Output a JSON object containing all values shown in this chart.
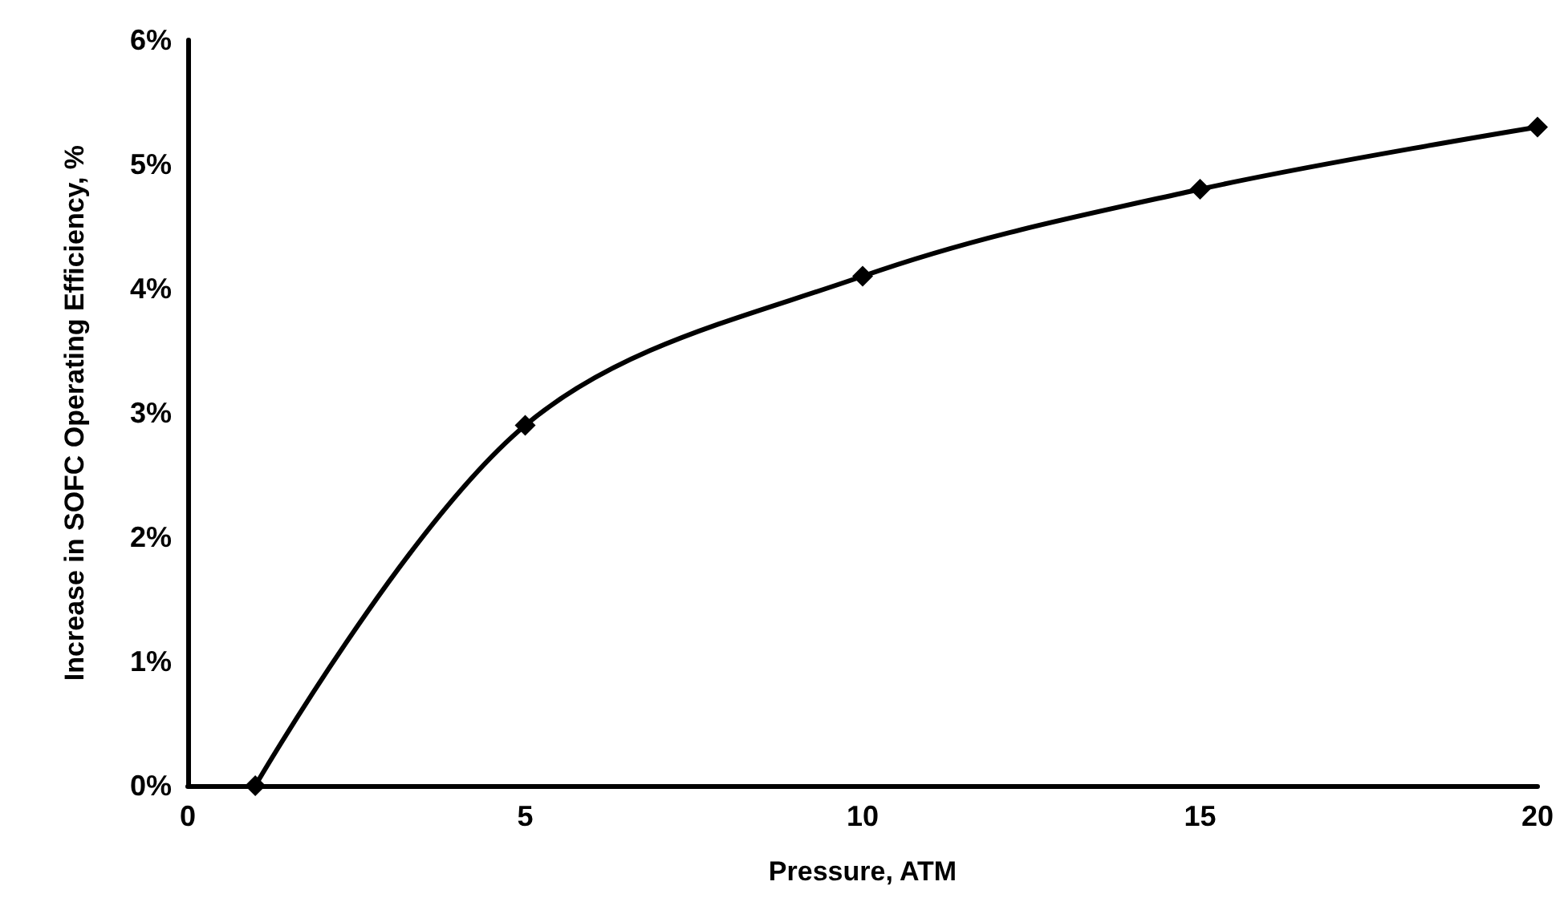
{
  "chart_data": {
    "type": "line",
    "xlabel": "Pressure, ATM",
    "ylabel": "Increase in SOFC Operating Efficiency, %",
    "x": [
      1,
      5,
      10,
      15,
      20
    ],
    "series": [
      {
        "color": "#000000",
        "values": [
          0,
          2.9,
          4.1,
          4.8,
          5.3
        ]
      }
    ],
    "xlim": [
      0,
      20
    ],
    "xticks": [
      0,
      5,
      10,
      15,
      20
    ],
    "ylim": [
      0,
      6
    ],
    "yticks": [
      {
        "value": 0,
        "label": "0%"
      },
      {
        "value": 1,
        "label": "1%"
      },
      {
        "value": 2,
        "label": "2%"
      },
      {
        "value": 3,
        "label": "3%"
      },
      {
        "value": 4,
        "label": "4%"
      },
      {
        "value": 5,
        "label": "5%"
      },
      {
        "value": 6,
        "label": "6%"
      }
    ],
    "grid": false,
    "marker": "diamond",
    "line_style": "solid"
  }
}
